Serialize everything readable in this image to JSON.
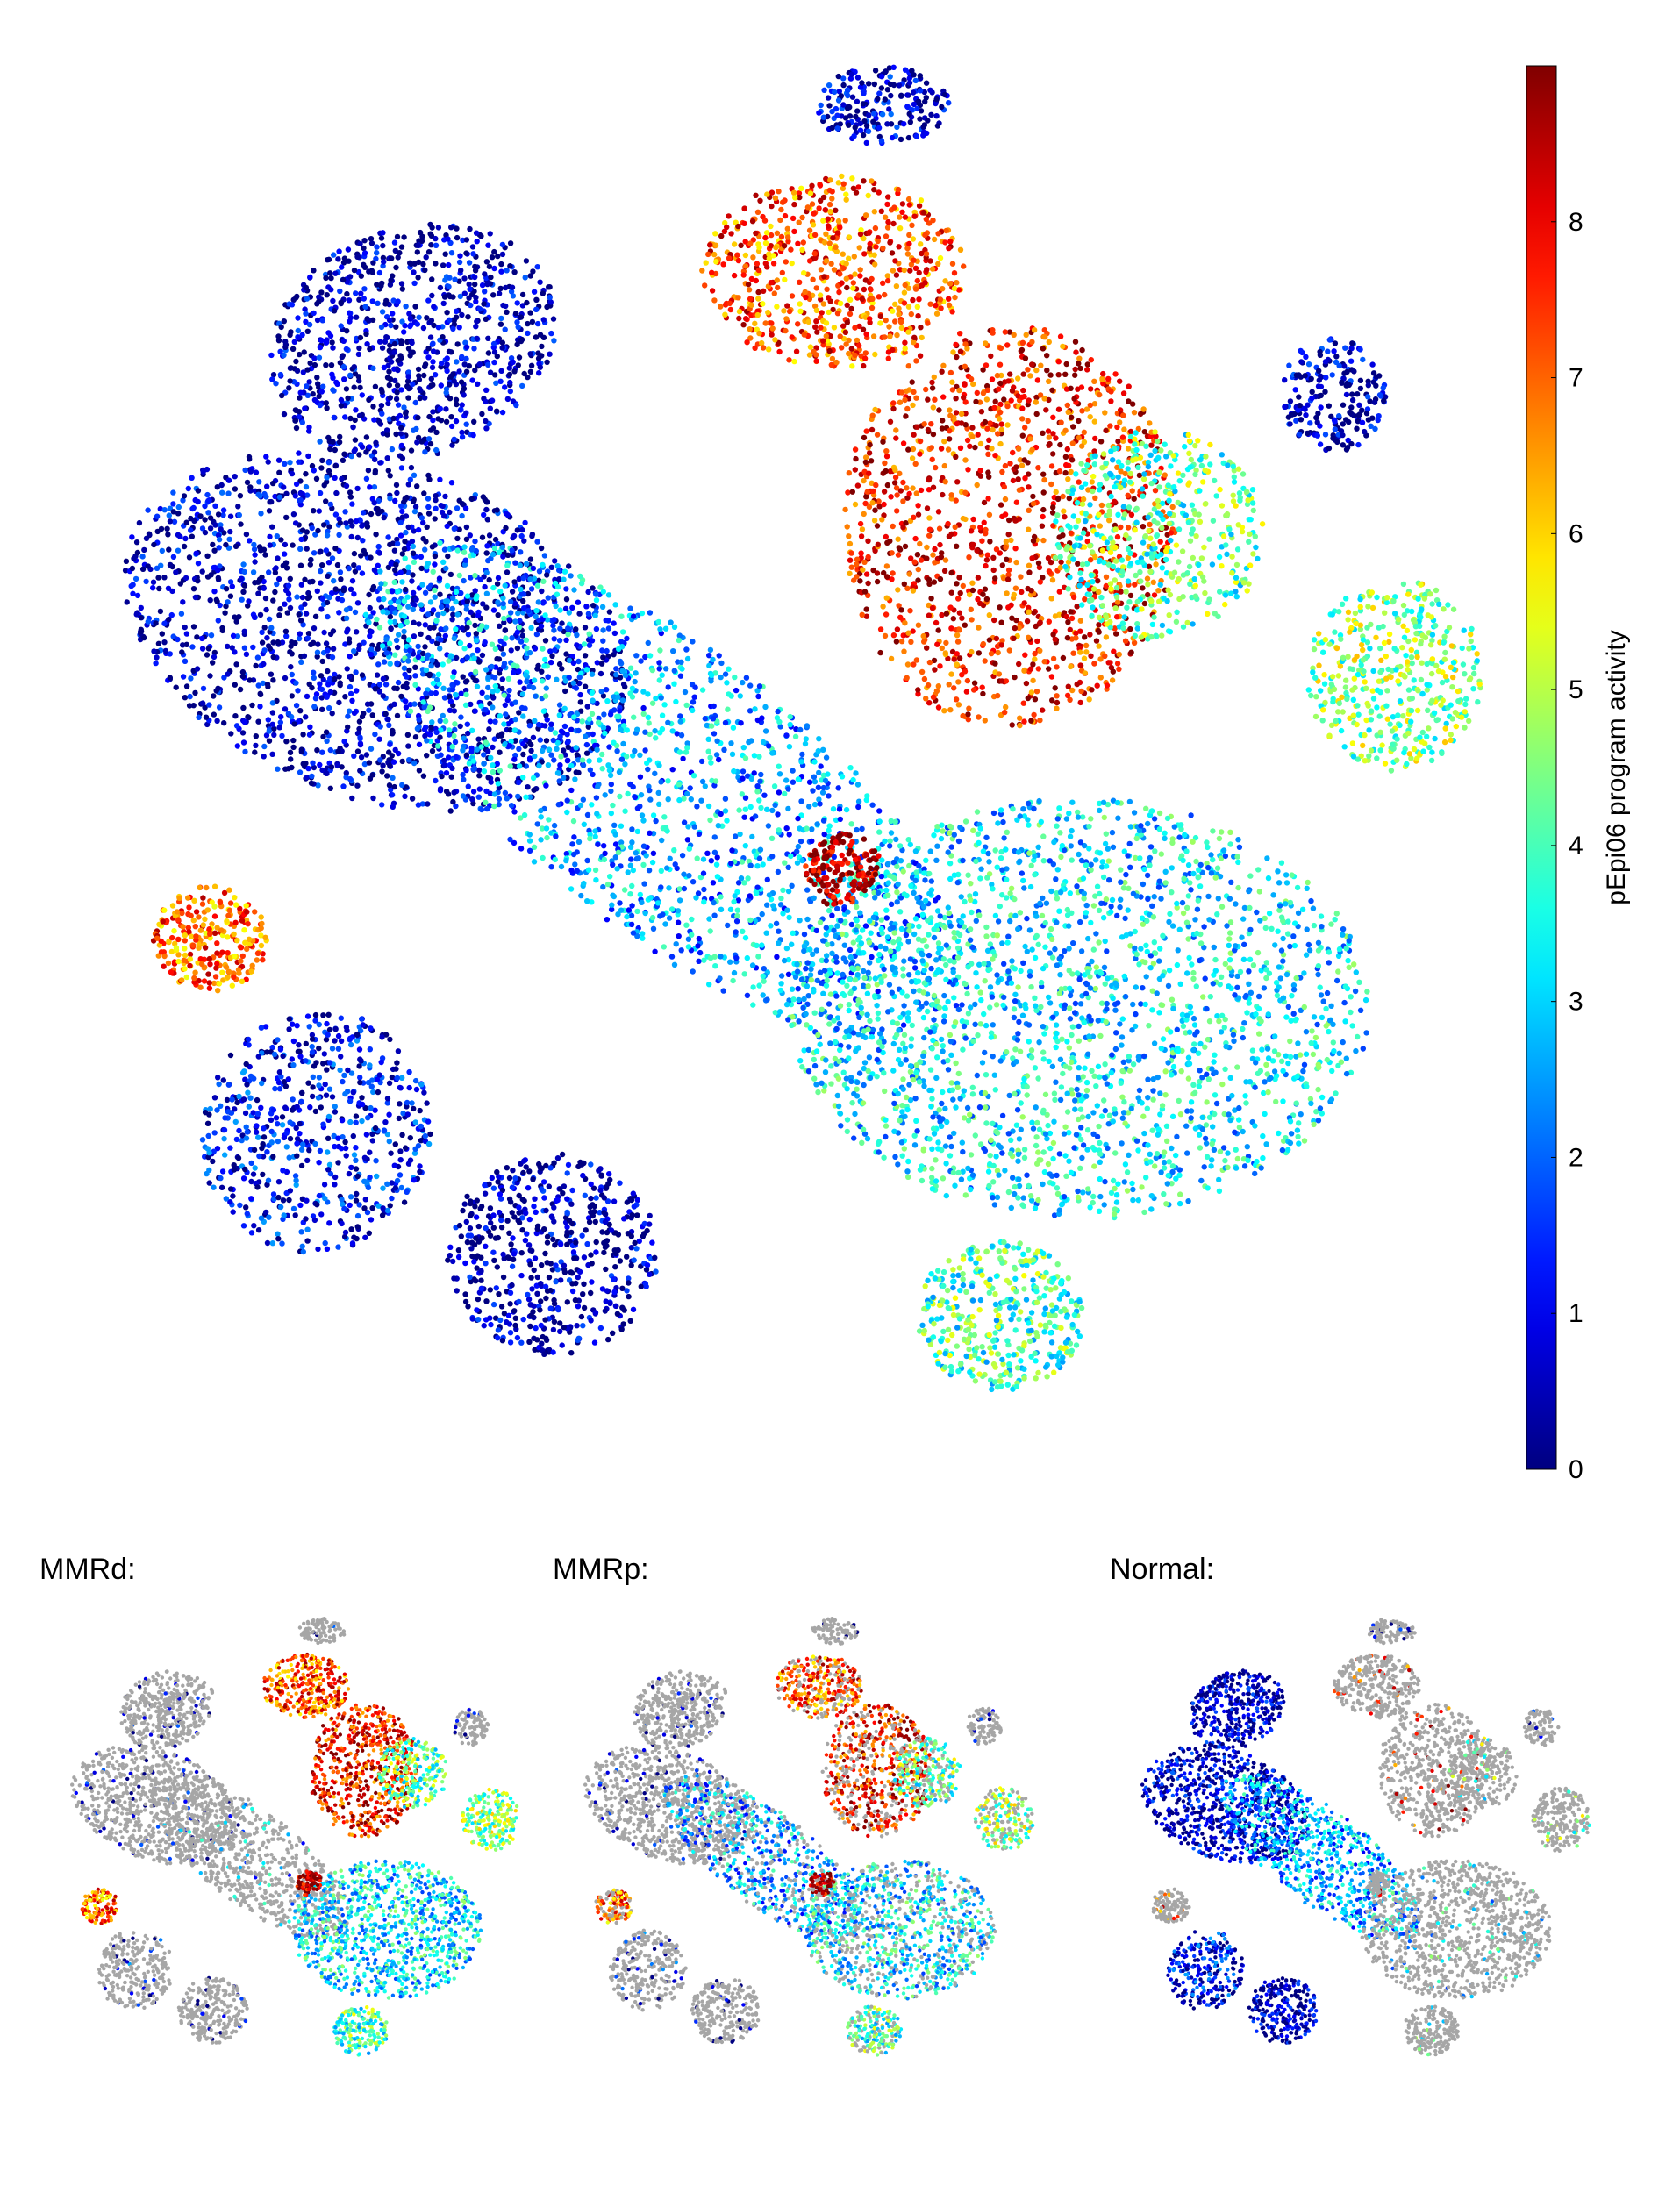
{
  "chart_data": [
    {
      "type": "scatter",
      "title": "",
      "xlabel": "",
      "ylabel": "",
      "colorbar": {
        "label": "pEpi06 program activity",
        "range": [
          0,
          9
        ],
        "ticks": [
          "0",
          "1",
          "2",
          "3",
          "4",
          "5",
          "6",
          "7",
          "8"
        ],
        "colormap": "jet"
      },
      "clusters": [
        {
          "id": "big-left-top",
          "activity": 0.4
        },
        {
          "id": "big-left-mid",
          "activity": 0.5
        },
        {
          "id": "central-diagonal",
          "activity": 2.6
        },
        {
          "id": "upper-right-hot",
          "activity": 7.8
        },
        {
          "id": "upper-center-hot",
          "activity": 7.2
        },
        {
          "id": "right-center-mixed",
          "activity": 4.2
        },
        {
          "id": "bottom-right-mixed",
          "activity": 3.2
        },
        {
          "id": "left-small-hot",
          "activity": 7.0
        },
        {
          "id": "diamond-hot",
          "activity": 8.8
        },
        {
          "id": "bottom-left-blue",
          "activity": 1.0
        },
        {
          "id": "bottom-center-dark",
          "activity": 0.3
        },
        {
          "id": "bottom-round-cyan",
          "activity": 4.0
        },
        {
          "id": "right-blob-yellow",
          "activity": 4.6
        },
        {
          "id": "far-right-dark",
          "activity": 0.4
        },
        {
          "id": "top-dark",
          "activity": 0.5
        }
      ]
    },
    {
      "type": "scatter",
      "title": "MMRd:",
      "highlight": "MMRd",
      "background_color": "#a6a6a6"
    },
    {
      "type": "scatter",
      "title": "MMRp:",
      "highlight": "MMRp",
      "background_color": "#a6a6a6"
    },
    {
      "type": "scatter",
      "title": "Normal:",
      "highlight": "Normal",
      "background_color": "#a6a6a6"
    }
  ]
}
